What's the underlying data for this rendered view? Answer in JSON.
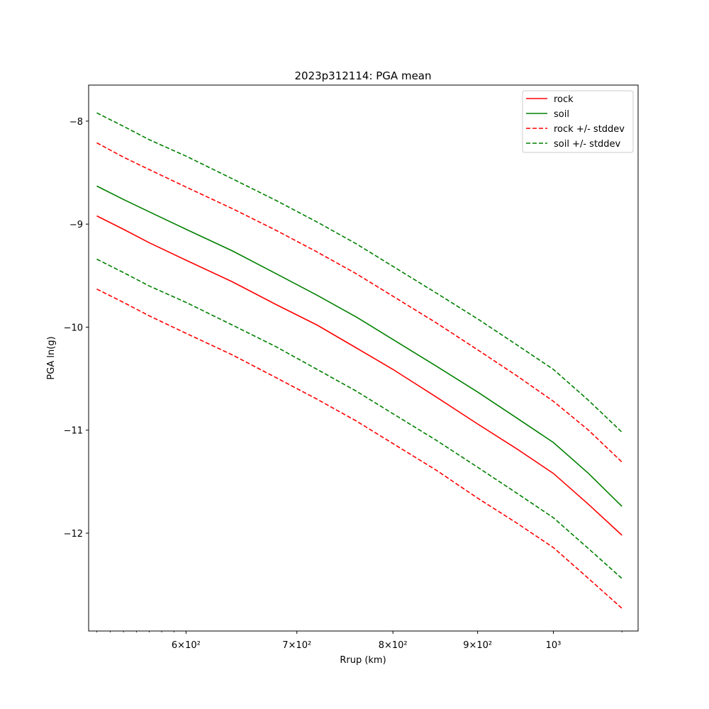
{
  "chart_data": {
    "type": "line",
    "title": "2023p312114: PGA mean",
    "xlabel": "Rrup (km)",
    "ylabel": "PGA ln(g)",
    "xscale": "log",
    "xlim": [
      524,
      1125
    ],
    "ylim": [
      -12.95,
      -7.65
    ],
    "grid": false,
    "legend_position": "top-right",
    "x": [
      530,
      550,
      570,
      600,
      640,
      680,
      720,
      760,
      800,
      850,
      900,
      950,
      1000,
      1050,
      1100
    ],
    "series": [
      {
        "name": "rock",
        "style": "solid",
        "color": "#ff0000",
        "values": [
          -8.92,
          -9.05,
          -9.18,
          -9.35,
          -9.56,
          -9.78,
          -9.98,
          -10.2,
          -10.41,
          -10.68,
          -10.94,
          -11.18,
          -11.42,
          -11.72,
          -12.02
        ]
      },
      {
        "name": "soil",
        "style": "solid",
        "color": "#008000",
        "values": [
          -8.63,
          -8.76,
          -8.88,
          -9.05,
          -9.26,
          -9.48,
          -9.69,
          -9.9,
          -10.12,
          -10.38,
          -10.63,
          -10.88,
          -11.12,
          -11.42,
          -11.74
        ]
      },
      {
        "name": "rock +/- stddev",
        "style": "dashed",
        "color": "#ff0000",
        "values": [
          -8.21,
          -8.35,
          -8.47,
          -8.64,
          -8.85,
          -9.06,
          -9.27,
          -9.48,
          -9.7,
          -9.96,
          -10.22,
          -10.47,
          -10.72,
          -11.0,
          -11.31
        ]
      },
      {
        "name": "",
        "style": "dashed",
        "color": "#ff0000",
        "values": [
          -9.63,
          -9.76,
          -9.89,
          -10.06,
          -10.27,
          -10.49,
          -10.7,
          -10.91,
          -11.13,
          -11.39,
          -11.66,
          -11.9,
          -12.14,
          -12.44,
          -12.73
        ]
      },
      {
        "name": "soil +/- stddev",
        "style": "dashed",
        "color": "#008000",
        "values": [
          -7.92,
          -8.05,
          -8.18,
          -8.34,
          -8.56,
          -8.77,
          -8.98,
          -9.19,
          -9.41,
          -9.67,
          -9.92,
          -10.17,
          -10.41,
          -10.71,
          -11.02
        ]
      },
      {
        "name": "",
        "style": "dashed",
        "color": "#008000",
        "values": [
          -9.34,
          -9.47,
          -9.6,
          -9.76,
          -9.98,
          -10.19,
          -10.41,
          -10.62,
          -10.84,
          -11.1,
          -11.36,
          -11.61,
          -11.85,
          -12.15,
          -12.44
        ]
      }
    ],
    "x_ticks": [
      {
        "value": 600,
        "label": "6×10²"
      },
      {
        "value": 700,
        "label": "7×10²"
      },
      {
        "value": 800,
        "label": "8×10²"
      },
      {
        "value": 900,
        "label": "9×10²"
      },
      {
        "value": 1000,
        "label": "10³"
      }
    ],
    "y_ticks": [
      {
        "value": -8,
        "label": "−8"
      },
      {
        "value": -9,
        "label": "−9"
      },
      {
        "value": -10,
        "label": "−10"
      },
      {
        "value": -11,
        "label": "−11"
      },
      {
        "value": -12,
        "label": "−12"
      }
    ],
    "legend": [
      {
        "label": "rock",
        "color": "#ff0000",
        "style": "solid"
      },
      {
        "label": "soil",
        "color": "#008000",
        "style": "solid"
      },
      {
        "label": "rock +/- stddev",
        "color": "#ff0000",
        "style": "dashed"
      },
      {
        "label": "soil +/- stddev",
        "color": "#008000",
        "style": "dashed"
      }
    ]
  }
}
